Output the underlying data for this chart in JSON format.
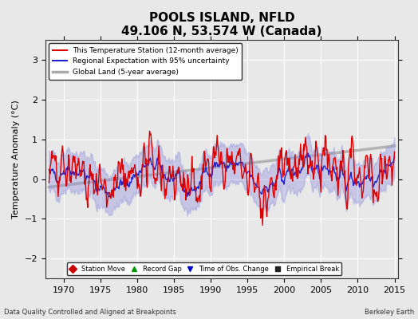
{
  "title": "POOLS ISLAND, NFLD",
  "subtitle": "49.106 N, 53.574 W (Canada)",
  "ylabel": "Temperature Anomaly (°C)",
  "footer_left": "Data Quality Controlled and Aligned at Breakpoints",
  "footer_right": "Berkeley Earth",
  "xlim": [
    1967.5,
    2015.5
  ],
  "ylim": [
    -2.5,
    3.5
  ],
  "yticks": [
    -2,
    -1,
    0,
    1,
    2,
    3
  ],
  "xticks": [
    1970,
    1975,
    1980,
    1985,
    1990,
    1995,
    2000,
    2005,
    2010,
    2015
  ],
  "background_color": "#e8e8e8",
  "plot_background": "#e8e8e8",
  "grid_color": "#ffffff",
  "red_color": "#dd0000",
  "blue_color": "#2222cc",
  "blue_fill": "#8888dd",
  "gray_color": "#aaaaaa",
  "legend_items": [
    {
      "label": "This Temperature Station (12-month average)",
      "color": "#dd0000",
      "lw": 1.5
    },
    {
      "label": "Regional Expectation with 95% uncertainty",
      "color": "#2222cc",
      "lw": 1.5
    },
    {
      "label": "Global Land (5-year average)",
      "color": "#aaaaaa",
      "lw": 2.5
    }
  ],
  "marker_legend": [
    {
      "marker": "D",
      "color": "#cc0000",
      "label": "Station Move"
    },
    {
      "marker": "^",
      "color": "#009900",
      "label": "Record Gap"
    },
    {
      "marker": "v",
      "color": "#0000cc",
      "label": "Time of Obs. Change"
    },
    {
      "marker": "s",
      "color": "#222222",
      "label": "Empirical Break"
    }
  ],
  "seed": 42
}
